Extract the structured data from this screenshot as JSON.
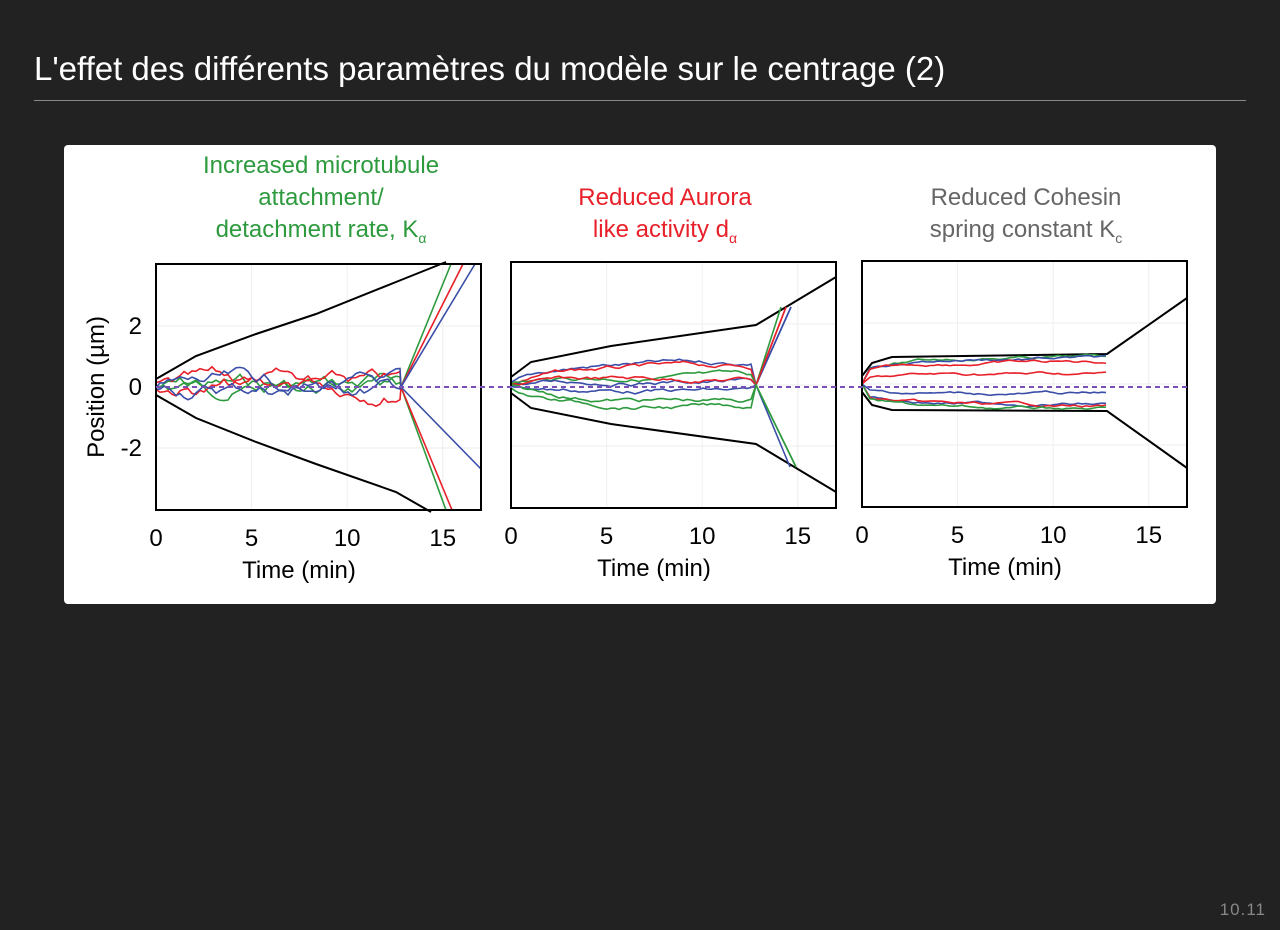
{
  "slide": {
    "title": "L'effet des différents paramètres du modèle sur le centrage (2)",
    "page_number": "10.11"
  },
  "figure": {
    "y_axis_label": "Position (µm)",
    "y_tick_labels": [
      "2",
      "0",
      "-2"
    ],
    "panels": [
      {
        "title_lines": [
          "Increased microtubule",
          "attachment/",
          "detachment rate, K"
        ],
        "subscript": "α",
        "x_tick_labels": [
          "0",
          "5",
          "10",
          "15"
        ],
        "x_axis_label": "Time (min)"
      },
      {
        "title_lines": [
          "Reduced Aurora",
          "like activity d"
        ],
        "subscript": "α",
        "x_tick_labels": [
          "0",
          "5",
          "10",
          "15"
        ],
        "x_axis_label": "Time (min)"
      },
      {
        "title_lines": [
          "Reduced Cohesin",
          "spring constant K"
        ],
        "subscript": "c",
        "x_tick_labels": [
          "0",
          "5",
          "10",
          "15"
        ],
        "x_axis_label": "Time (min)"
      }
    ]
  }
}
